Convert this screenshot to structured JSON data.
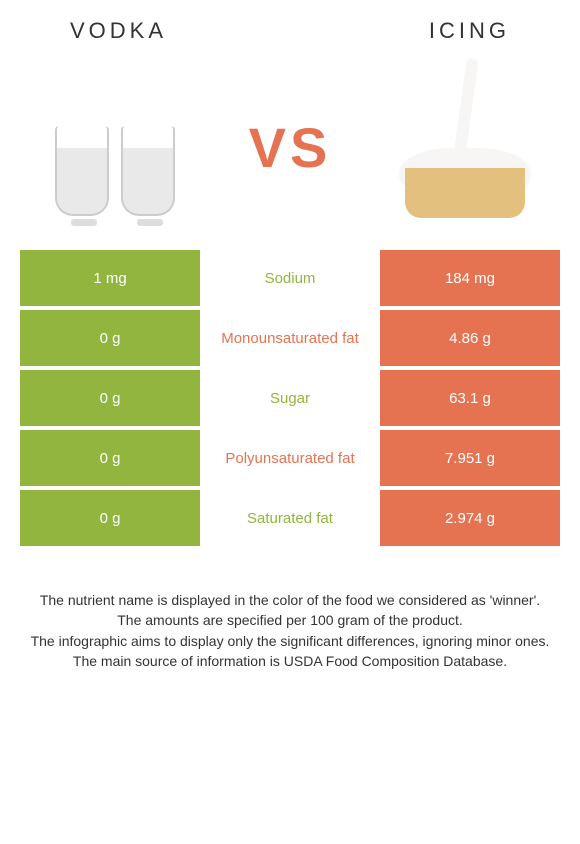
{
  "header": {
    "left": "VODKA",
    "right": "ICING"
  },
  "vs_label": "VS",
  "colors": {
    "left_cell": "#91b53e",
    "right_cell": "#e57352",
    "mid_bg": "#ffffff",
    "left_winner_text": "#91b53e",
    "right_winner_text": "#e57352"
  },
  "rows": [
    {
      "left": "1 mg",
      "label": "Sodium",
      "right": "184 mg",
      "winner": "left"
    },
    {
      "left": "0 g",
      "label": "Monounsaturated fat",
      "right": "4.86 g",
      "winner": "right"
    },
    {
      "left": "0 g",
      "label": "Sugar",
      "right": "63.1 g",
      "winner": "left"
    },
    {
      "left": "0 g",
      "label": "Polyunsaturated fat",
      "right": "7.951 g",
      "winner": "right"
    },
    {
      "left": "0 g",
      "label": "Saturated fat",
      "right": "2.974 g",
      "winner": "left"
    }
  ],
  "footnotes": [
    "The nutrient name is displayed in the color of the food we considered as 'winner'.",
    "The amounts are specified per 100 gram of the product.",
    "The infographic aims to display only the significant differences, ignoring minor ones.",
    "The main source of information is USDA Food Composition Database."
  ]
}
